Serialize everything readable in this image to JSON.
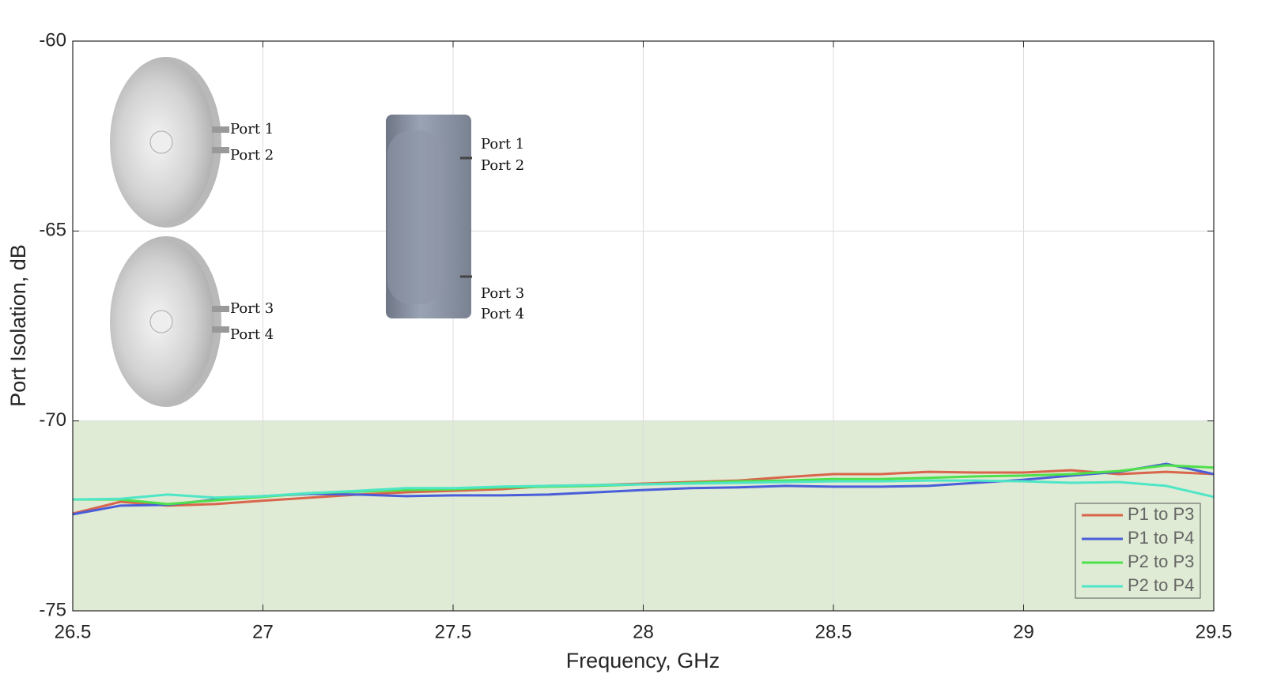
{
  "chart_data": {
    "type": "line",
    "x_label": "Frequency, GHz",
    "y_label": "Port Isolation, dB",
    "x": [
      26.5,
      26.625,
      26.75,
      26.875,
      27,
      27.125,
      27.25,
      27.375,
      27.5,
      27.625,
      27.75,
      27.875,
      28,
      28.125,
      28.25,
      28.375,
      28.5,
      28.625,
      28.75,
      28.875,
      29,
      29.125,
      29.25,
      29.375,
      29.5
    ],
    "series": [
      {
        "name": "P1 to P3",
        "color": "#d9654c",
        "values": [
          -72.44,
          -72.13,
          -72.23,
          -72.19,
          -72.1,
          -72.02,
          -71.94,
          -71.88,
          -71.84,
          -71.8,
          -71.71,
          -71.69,
          -71.65,
          -71.61,
          -71.57,
          -71.48,
          -71.4,
          -71.4,
          -71.34,
          -71.36,
          -71.36,
          -71.3,
          -71.4,
          -71.34,
          -71.4
        ]
      },
      {
        "name": "P1 to P4",
        "color": "#4a5ed9",
        "values": [
          -72.46,
          -72.23,
          -72.21,
          -72.07,
          -71.98,
          -71.92,
          -71.94,
          -71.98,
          -71.96,
          -71.96,
          -71.94,
          -71.88,
          -71.82,
          -71.77,
          -71.75,
          -71.71,
          -71.73,
          -71.73,
          -71.71,
          -71.63,
          -71.55,
          -71.44,
          -71.34,
          -71.13,
          -71.4
        ]
      },
      {
        "name": "P2 to P3",
        "color": "#4ee04a",
        "values": [
          -72.07,
          -72.07,
          -72.19,
          -72.09,
          -72.0,
          -71.9,
          -71.86,
          -71.82,
          -71.8,
          -71.75,
          -71.73,
          -71.71,
          -71.67,
          -71.63,
          -71.59,
          -71.57,
          -71.53,
          -71.53,
          -71.5,
          -71.46,
          -71.44,
          -71.4,
          -71.32,
          -71.17,
          -71.23
        ]
      },
      {
        "name": "P2 to P4",
        "color": "#4ee6c6",
        "values": [
          -72.07,
          -72.05,
          -71.94,
          -72.02,
          -71.98,
          -71.9,
          -71.84,
          -71.77,
          -71.77,
          -71.73,
          -71.71,
          -71.69,
          -71.67,
          -71.65,
          -71.63,
          -71.61,
          -71.59,
          -71.59,
          -71.57,
          -71.57,
          -71.59,
          -71.63,
          -71.61,
          -71.71,
          -72.0
        ]
      }
    ],
    "xlim": [
      26.5,
      29.5
    ],
    "xticks": [
      26.5,
      27,
      27.5,
      28,
      28.5,
      29,
      29.5
    ],
    "ylim": [
      -75,
      -60
    ],
    "yticks": [
      -60,
      -65,
      -70,
      -75
    ],
    "shaded_range": [
      -75,
      -70
    ],
    "shaded_color": "#dfebd4",
    "grid": true,
    "legend": "lower right",
    "annotations": [
      "Port 1",
      "Port 2",
      "Port 3",
      "Port 4",
      "Port 1",
      "Port 2",
      "Port 3",
      "Port 4"
    ]
  }
}
